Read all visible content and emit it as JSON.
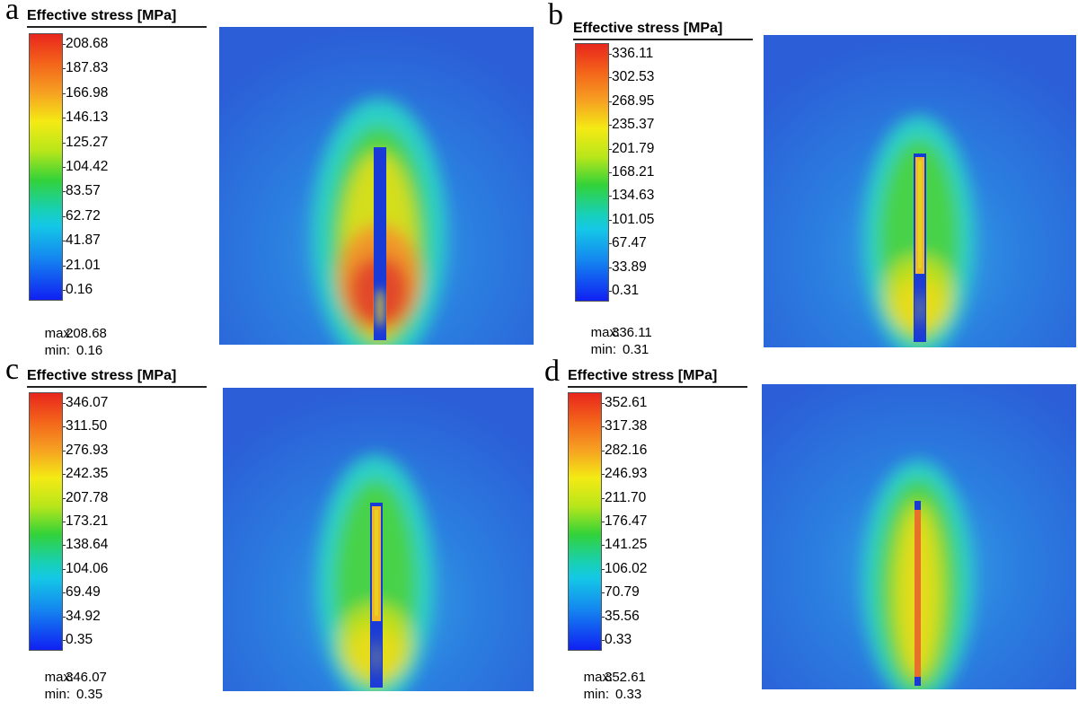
{
  "panels": [
    {
      "letter": "a",
      "legend_title": "Effective stress [MPa]",
      "ticks": [
        "208.68",
        "187.83",
        "166.98",
        "146.13",
        "125.27",
        "104.42",
        "83.57",
        "62.72",
        "41.87",
        "21.01",
        "0.16"
      ],
      "max_label": "max:",
      "max_value": "208.68",
      "min_label": "min:",
      "min_value": "0.16"
    },
    {
      "letter": "b",
      "legend_title": "Effective stress [MPa]",
      "ticks": [
        "336.11",
        "302.53",
        "268.95",
        "235.37",
        "201.79",
        "168.21",
        "134.63",
        "101.05",
        "67.47",
        "33.89",
        "0.31"
      ],
      "max_label": "max:",
      "max_value": "336.11",
      "min_label": "min:",
      "min_value": "0.31"
    },
    {
      "letter": "c",
      "legend_title": "Effective stress [MPa]",
      "ticks": [
        "346.07",
        "311.50",
        "276.93",
        "242.35",
        "207.78",
        "173.21",
        "138.64",
        "104.06",
        "69.49",
        "34.92",
        "0.35"
      ],
      "max_label": "max:",
      "max_value": "346.07",
      "min_label": "min:",
      "min_value": "0.35"
    },
    {
      "letter": "d",
      "legend_title": "Effective stress [MPa]",
      "ticks": [
        "352.61",
        "317.38",
        "282.16",
        "246.93",
        "211.70",
        "176.47",
        "141.25",
        "106.02",
        "70.79",
        "35.56",
        "0.33"
      ],
      "max_label": "max:",
      "max_value": "352.61",
      "min_label": "min:",
      "min_value": "0.33"
    }
  ],
  "colors": {
    "background_field": "#2b5ed7",
    "cyan": "#29c8d8",
    "green": "#3fd24a",
    "yellow": "#e6e01e",
    "orange": "#f08a22",
    "red": "#e0402a",
    "slot_blue": "#1a3ad8"
  }
}
